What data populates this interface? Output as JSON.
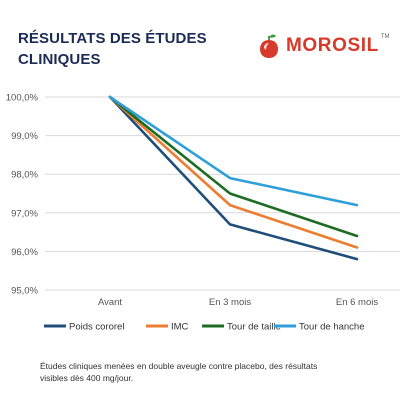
{
  "header": {
    "title_line1": "RÉSULTATS DES ÉTUDES",
    "title_line2": "CLINIQUES",
    "brand": "MOROSIL",
    "trademark": "TM"
  },
  "footnote": {
    "line1": "Études cliniques menées en double aveugle contre placebo, des résultats",
    "line2": "visibles dès 400 mg/jour."
  },
  "colors": {
    "brand_red": "#d73a2b",
    "grid": "#d9d9d9",
    "axis_text": "#555555"
  },
  "chart_data": {
    "type": "line",
    "x": [
      "Avant",
      "En 3 mois",
      "En 6 mois"
    ],
    "ylim": [
      95,
      100
    ],
    "yticks": [
      "95,0%",
      "96,0%",
      "97,0%",
      "98,0%",
      "99,0%",
      "100,0%"
    ],
    "ytick_values": [
      95,
      96,
      97,
      98,
      99,
      100
    ],
    "grid": true,
    "legend_position": "bottom",
    "series": [
      {
        "name": "Poids cororel",
        "values": [
          100,
          96.7,
          95.8
        ],
        "color": "#1f4e79"
      },
      {
        "name": "IMC",
        "values": [
          100,
          97.2,
          96.1
        ],
        "color": "#ed7d31"
      },
      {
        "name": "Tour de taille",
        "values": [
          100,
          97.5,
          96.4
        ],
        "color": "#1e6b24"
      },
      {
        "name": "Tour de hanche",
        "values": [
          100,
          97.9,
          97.2
        ],
        "color": "#2e9fd8"
      }
    ]
  }
}
